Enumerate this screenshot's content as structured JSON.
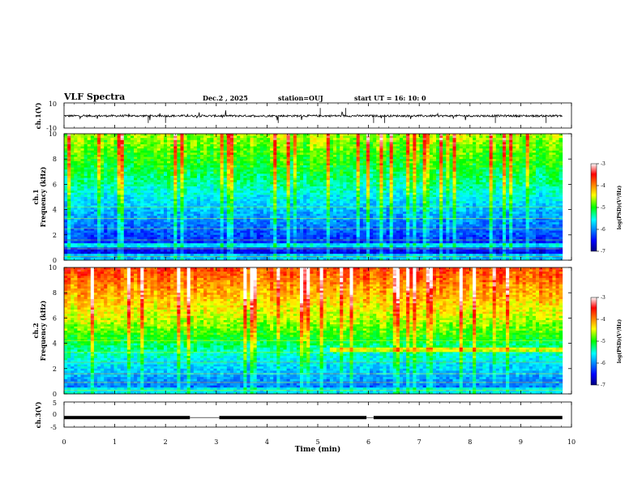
{
  "header": {
    "title": "VLF Spectra",
    "date": "Dec.2  , 2025",
    "station": "station=OUJ",
    "start": "start  UT  =   16: 10: 0"
  },
  "chart_data": [
    {
      "type": "line",
      "name": "ch1-waveform",
      "ylabel": "ch.1(V)",
      "ylim": [
        -10,
        10
      ],
      "yticks": [
        "10",
        "-10"
      ],
      "xlim": [
        0,
        10
      ]
    },
    {
      "type": "heatmap",
      "name": "ch1-spectrogram",
      "ylabel": "ch.1\nFrequency (kHz)",
      "ylim": [
        0,
        10
      ],
      "yticks": [
        "0",
        "2",
        "4",
        "6",
        "8",
        "10"
      ],
      "xlim": [
        0,
        9.8
      ],
      "colorbar": {
        "label": "log(PSD)(V²/Hz)",
        "range": [
          -7,
          -3
        ],
        "ticks": [
          "-3",
          "-4",
          "-5",
          "-6",
          "-7"
        ],
        "colormap": "jet"
      }
    },
    {
      "type": "heatmap",
      "name": "ch2-spectrogram",
      "ylabel": "ch.2\nFrequency (kHz)",
      "ylim": [
        0,
        10
      ],
      "yticks": [
        "0",
        "2",
        "4",
        "6",
        "8",
        "10"
      ],
      "xlim": [
        0,
        9.8
      ],
      "colorbar": {
        "label": "log(PSD)(V²/Hz)",
        "range": [
          -7,
          -3
        ],
        "ticks": [
          "-3",
          "-4",
          "-5",
          "-6",
          "-7"
        ],
        "colormap": "jet"
      }
    },
    {
      "type": "line",
      "name": "ch3-level",
      "ylabel": "ch.3(V)",
      "ylim": [
        -5,
        5
      ],
      "yticks": [
        "5",
        "0",
        "-5"
      ],
      "xlim": [
        0,
        10
      ],
      "gaps_min": [
        [
          2.48,
          3.06
        ],
        [
          5.96,
          6.1
        ]
      ],
      "level": -1.2
    }
  ],
  "xaxis": {
    "label": "Time  (min)",
    "ticks": [
      "0",
      "1",
      "2",
      "3",
      "4",
      "5",
      "6",
      "7",
      "8",
      "9",
      "10"
    ]
  },
  "colors": {
    "line": "#000000",
    "background": "#ffffff"
  }
}
